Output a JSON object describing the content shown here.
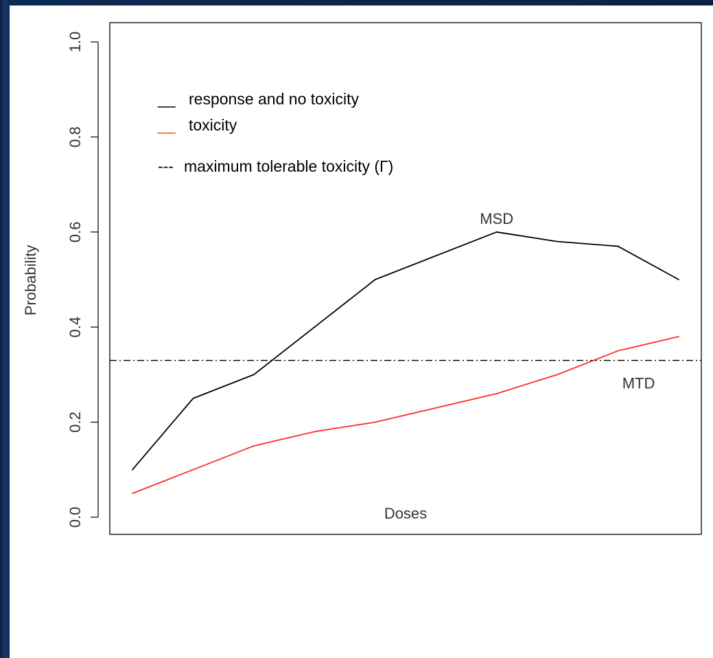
{
  "chart_data": {
    "type": "line",
    "xlabel": "Doses",
    "ylabel": "Probability",
    "ylim": [
      0,
      1
    ],
    "yticks": [
      "0.0",
      "0.2",
      "0.4",
      "0.6",
      "0.8",
      "1.0"
    ],
    "x": [
      1,
      2,
      3,
      4,
      5,
      6,
      7,
      8,
      9,
      10
    ],
    "series": [
      {
        "name": "response and no toxicity",
        "color": "#000000",
        "values": [
          0.1,
          0.25,
          0.3,
          0.4,
          0.5,
          0.55,
          0.6,
          0.58,
          0.57,
          0.5
        ]
      },
      {
        "name": "toxicity",
        "color": "#ff2a2a",
        "values": [
          0.05,
          0.1,
          0.15,
          0.18,
          0.2,
          0.23,
          0.26,
          0.3,
          0.35,
          0.38
        ]
      }
    ],
    "reference_line": {
      "name": "maximum tolerable toxicity (Γ)",
      "y": 0.33,
      "style": "dash-dot"
    },
    "legend": {
      "placement": "top-left",
      "items": [
        {
          "marker": "__",
          "label": "response and no toxicity",
          "marker_color": "#000000"
        },
        {
          "marker": "__",
          "label": "toxicity",
          "marker_color": "#e2571e"
        },
        {
          "marker": "---",
          "label": "maximum tolerable toxicity (Γ)",
          "marker_color": "#000000"
        }
      ]
    },
    "annotations": [
      {
        "text": "MSD",
        "x": 7,
        "y": 0.6
      },
      {
        "text": "MTD",
        "x": 9,
        "y": 0.33
      }
    ]
  }
}
